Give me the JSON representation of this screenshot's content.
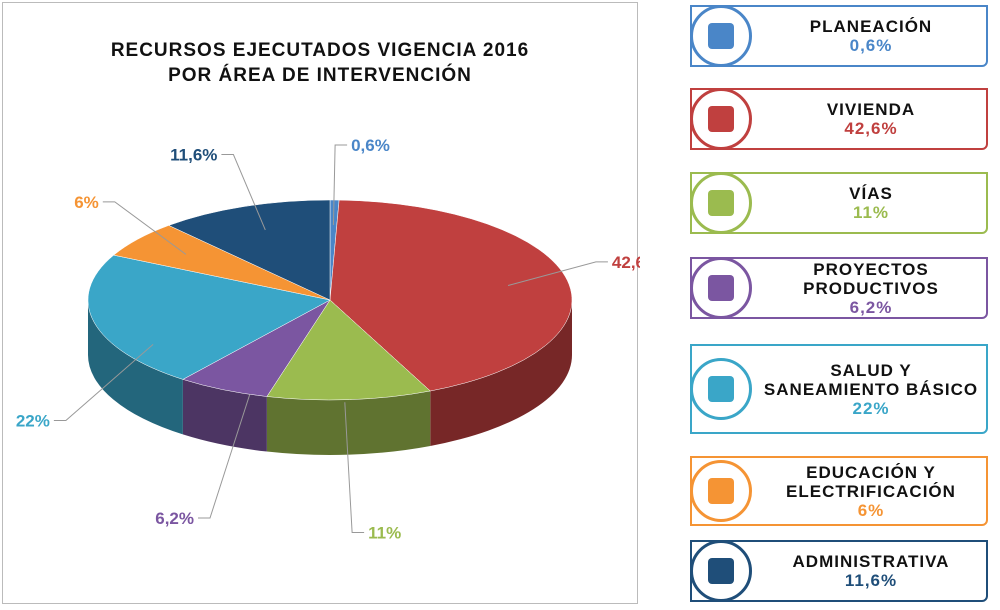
{
  "chart_data": {
    "type": "pie",
    "title": "RECURSOS EJECUTADOS VIGENCIA 2016 POR ÁREA DE INTERVENCIÓN",
    "categories": [
      "PLANEACIÓN",
      "VIVIENDA",
      "VÍAS",
      "PROYECTOS PRODUCTIVOS",
      "SALUD Y SANEAMIENTO BÁSICO",
      "EDUCACIÓN Y ELECTRIFICACIÓN",
      "ADMINISTRATIVA"
    ],
    "values": [
      0.6,
      42.6,
      11,
      6.2,
      22,
      6,
      11.6
    ],
    "value_labels": [
      "0,6%",
      "42,6%",
      "11%",
      "6,2%",
      "22%",
      "6%",
      "11,6%"
    ],
    "colors": [
      "#4a86c8",
      "#c0403f",
      "#9bbb4f",
      "#7b56a1",
      "#3aa6c8",
      "#f59434",
      "#1f4e79"
    ]
  }
}
